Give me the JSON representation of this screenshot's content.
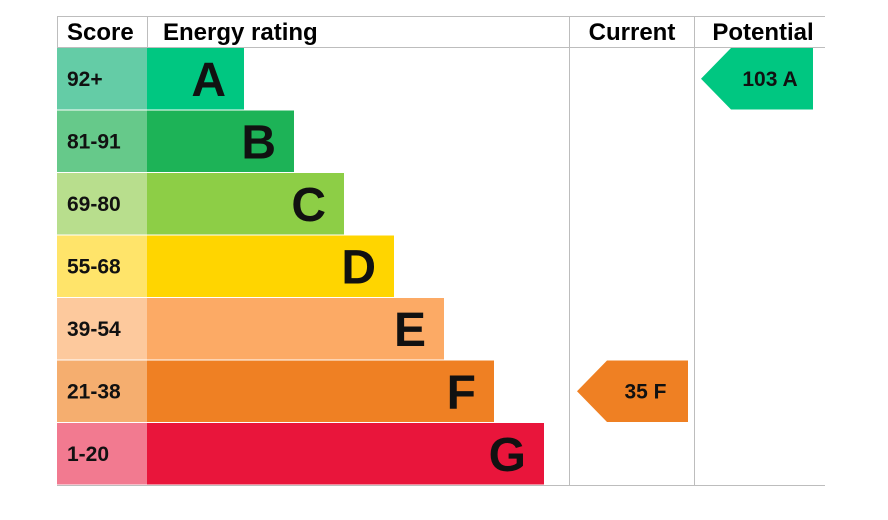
{
  "chart_data": {
    "type": "bar",
    "headers": {
      "score": "Score",
      "rating": "Energy rating",
      "current": "Current",
      "potential": "Potential"
    },
    "bands": [
      {
        "letter": "A",
        "range": "92+",
        "color": "#00c781",
        "score_color": "#64cca6"
      },
      {
        "letter": "B",
        "range": "81-91",
        "color": "#1db357",
        "score_color": "#66c98a"
      },
      {
        "letter": "C",
        "range": "69-80",
        "color": "#8dce46",
        "score_color": "#b8de8d"
      },
      {
        "letter": "D",
        "range": "55-68",
        "color": "#ffd500",
        "score_color": "#ffe46a"
      },
      {
        "letter": "E",
        "range": "39-54",
        "color": "#fcaa65",
        "score_color": "#fdc99d"
      },
      {
        "letter": "F",
        "range": "21-38",
        "color": "#ef8023",
        "score_color": "#f5ae6f"
      },
      {
        "letter": "G",
        "range": "1-20",
        "color": "#e9153b",
        "score_color": "#f27a90"
      }
    ],
    "current": {
      "value": 35,
      "band": "F",
      "label": "35  F",
      "color": "#ef8023",
      "text_color": "#111111"
    },
    "potential": {
      "value": 103,
      "band": "A",
      "label": "103  A",
      "color": "#00c781",
      "text_color": "#111111"
    }
  }
}
